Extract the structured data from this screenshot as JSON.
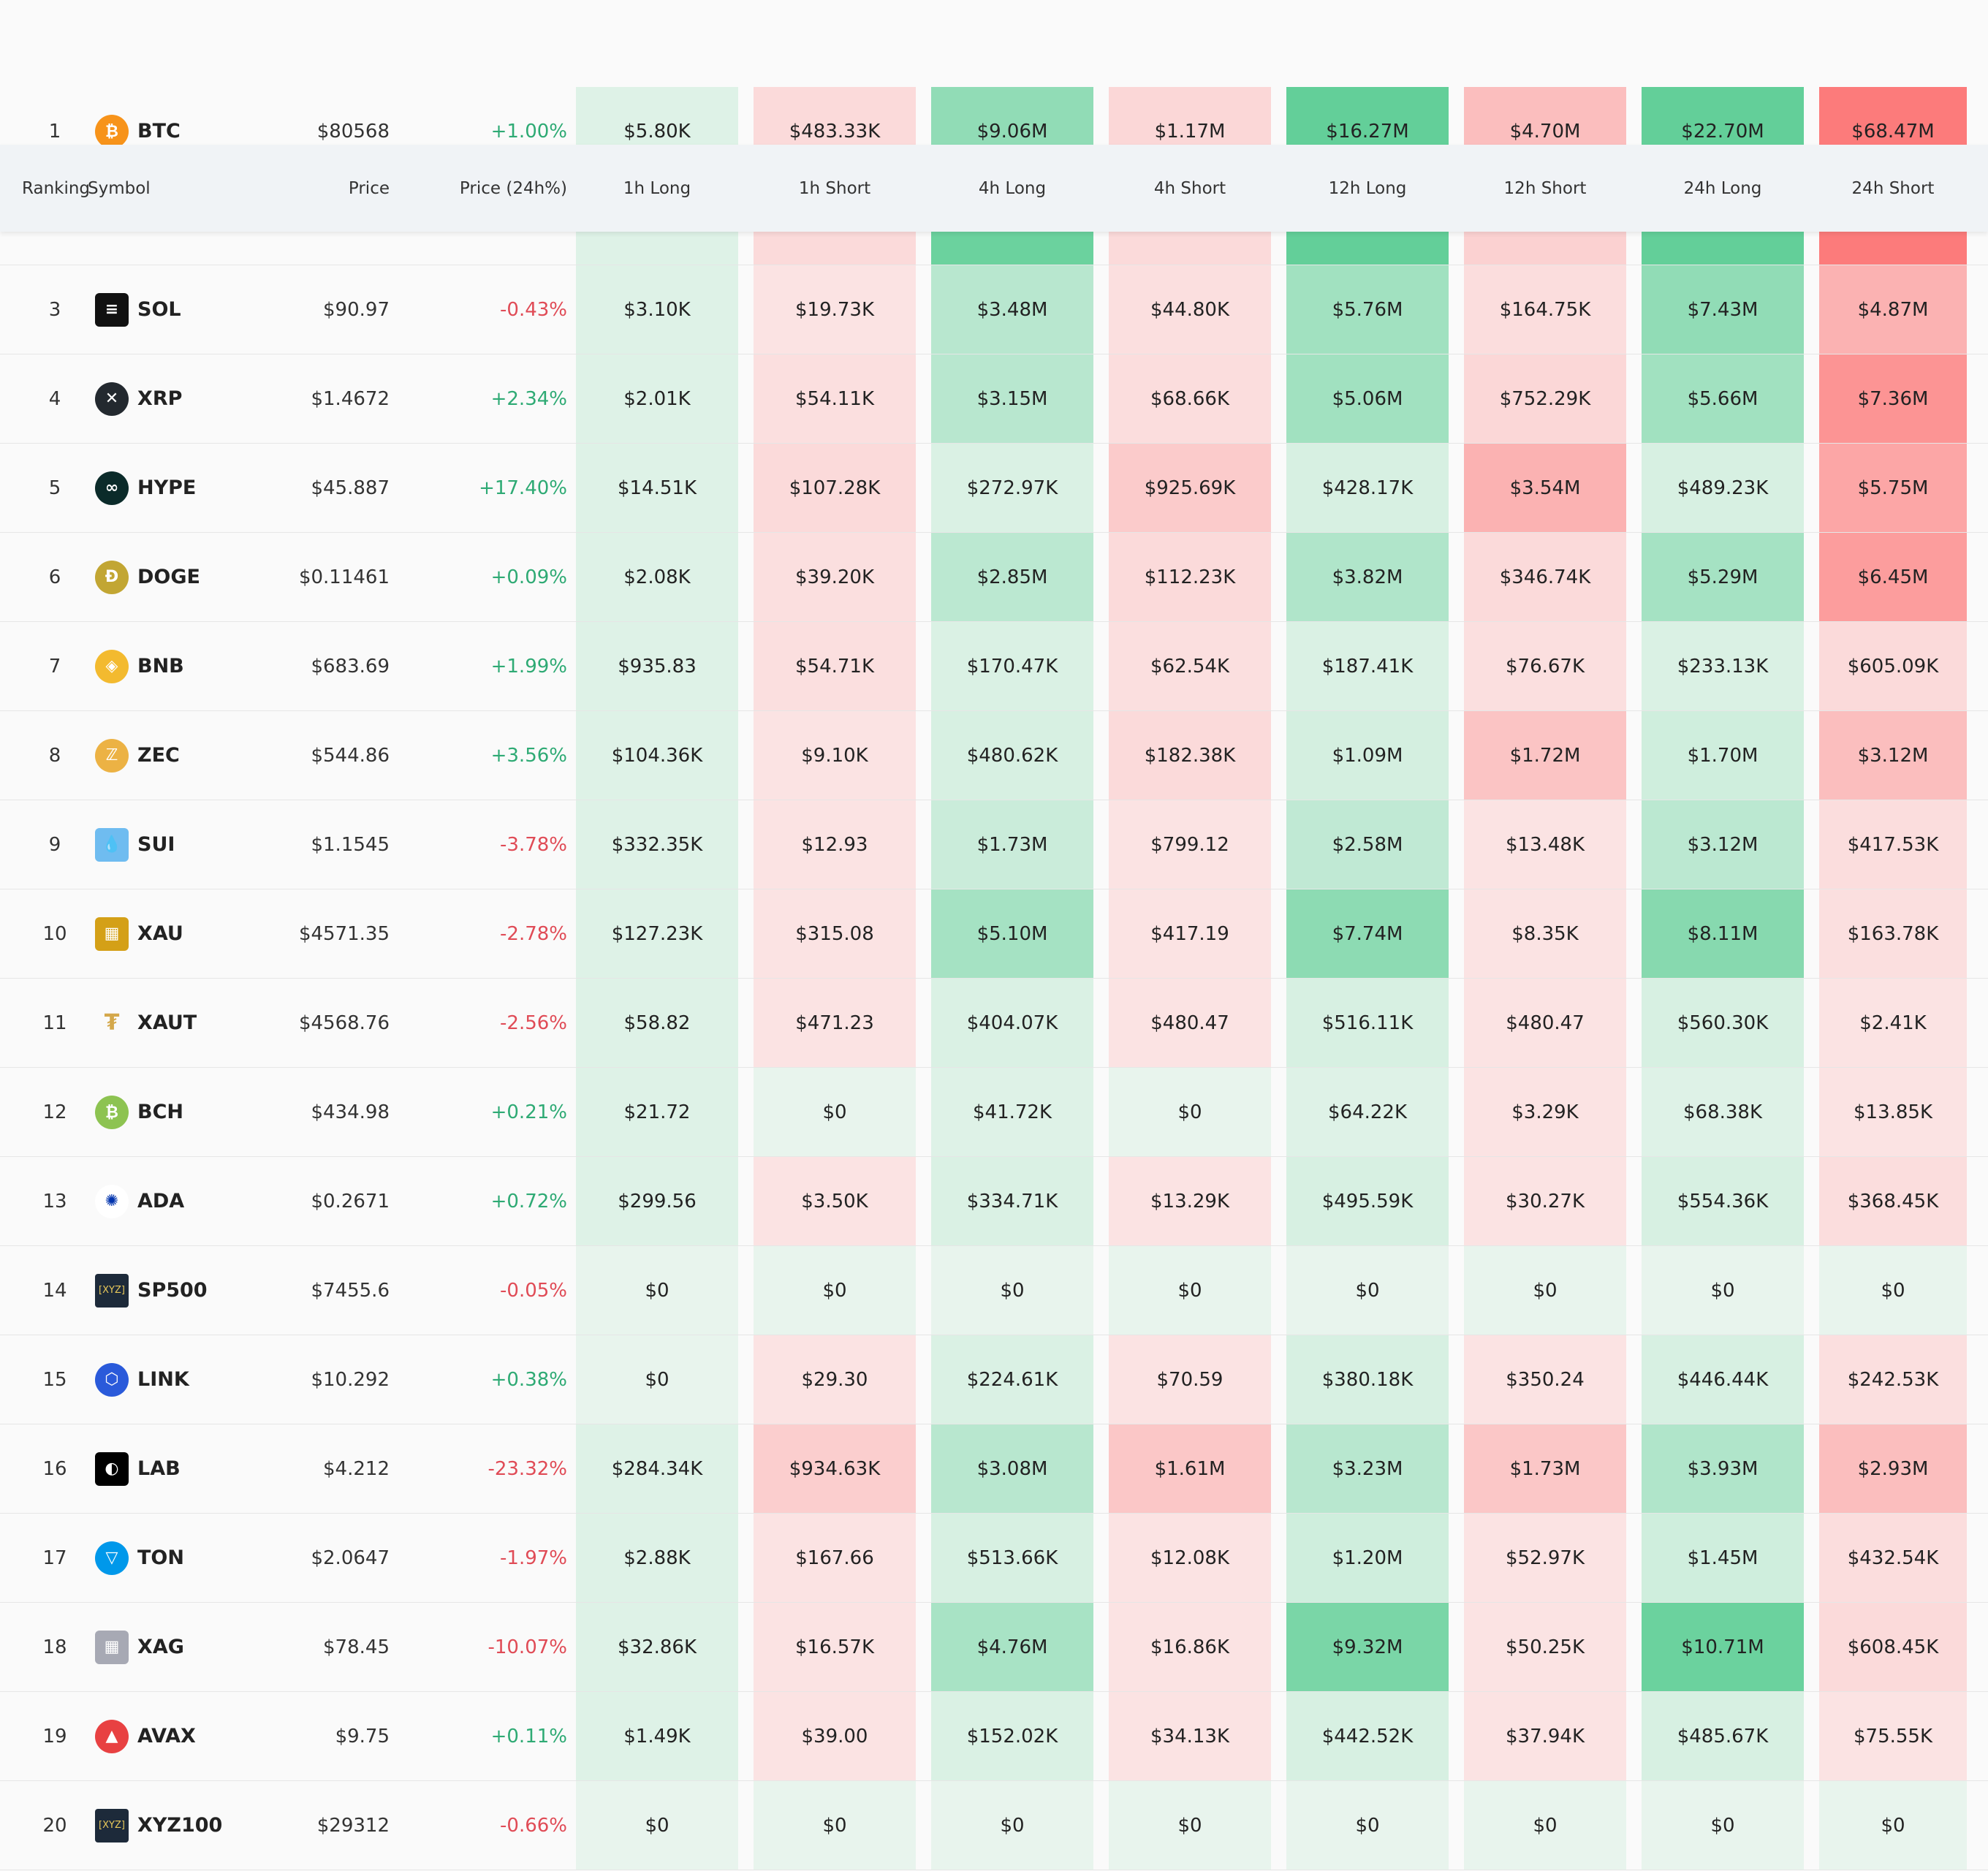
{
  "columns": {
    "ranking": "Ranking",
    "symbol": "Symbol",
    "price": "Price",
    "price_change": "Price (24h%)",
    "h1_long": "1h Long",
    "h1_short": "1h Short",
    "h4_long": "4h Long",
    "h4_short": "4h Short",
    "h12_long": "12h Long",
    "h12_short": "12h Short",
    "h24_long": "24h Long",
    "h24_short": "24h Short"
  },
  "colors": {
    "positive": "#2eaa74",
    "negative": "#e04b56",
    "long_base": "#e6f4ec",
    "short_base": "#fbe9e9"
  },
  "rows": [
    {
      "rank": "1",
      "symbol": "BTC",
      "icon": "bitcoin-icon",
      "icon_color": "#f7931a",
      "glyph": "₿",
      "price": "$80568",
      "change": "+1.00%",
      "dir": "pos",
      "values": [
        "$5.80K",
        "$483.33K",
        "$9.06M",
        "$1.17M",
        "$16.27M",
        "$4.70M",
        "$22.70M",
        "$68.47M"
      ],
      "levels": [
        0.05,
        0.12,
        0.55,
        0.15,
        0.85,
        0.35,
        0.85,
        0.9
      ]
    },
    {
      "rank": "",
      "symbol": "",
      "icon": "",
      "icon_color": "",
      "glyph": "",
      "price": "",
      "change": "",
      "dir": "pos",
      "values": [
        "",
        "",
        "",
        "",
        "",
        "",
        "",
        ""
      ],
      "levels": [
        0.05,
        0.12,
        0.8,
        0.12,
        0.85,
        0.2,
        0.85,
        0.9
      ]
    },
    {
      "rank": "3",
      "symbol": "SOL",
      "icon": "solana-icon",
      "icon_color": "#111111",
      "glyph": "≡",
      "price": "$90.97",
      "change": "-0.43%",
      "dir": "neg",
      "values": [
        "$3.10K",
        "$19.73K",
        "$3.48M",
        "$44.80K",
        "$5.76M",
        "$164.75K",
        "$7.43M",
        "$4.87M"
      ],
      "levels": [
        0.05,
        0.05,
        0.3,
        0.08,
        0.45,
        0.1,
        0.55,
        0.45
      ]
    },
    {
      "rank": "4",
      "symbol": "XRP",
      "icon": "xrp-icon",
      "icon_color": "#23292f",
      "glyph": "✕",
      "price": "$1.4672",
      "change": "+2.34%",
      "dir": "pos",
      "values": [
        "$2.01K",
        "$54.11K",
        "$3.15M",
        "$68.66K",
        "$5.06M",
        "$752.29K",
        "$5.66M",
        "$7.36M"
      ],
      "levels": [
        0.05,
        0.08,
        0.3,
        0.1,
        0.45,
        0.15,
        0.45,
        0.7
      ]
    },
    {
      "rank": "5",
      "symbol": "HYPE",
      "icon": "hyperliquid-icon",
      "icon_color": "#0b2b2a",
      "glyph": "∞",
      "price": "$45.887",
      "change": "+17.40%",
      "dir": "pos",
      "values": [
        "$14.51K",
        "$107.28K",
        "$272.97K",
        "$925.69K",
        "$428.17K",
        "$3.54M",
        "$489.23K",
        "$5.75M"
      ],
      "levels": [
        0.05,
        0.12,
        0.08,
        0.25,
        0.1,
        0.45,
        0.1,
        0.55
      ]
    },
    {
      "rank": "6",
      "symbol": "DOGE",
      "icon": "dogecoin-icon",
      "icon_color": "#c2a633",
      "glyph": "Ð",
      "price": "$0.11461",
      "change": "+0.09%",
      "dir": "pos",
      "values": [
        "$2.08K",
        "$39.20K",
        "$2.85M",
        "$112.23K",
        "$3.82M",
        "$346.74K",
        "$5.29M",
        "$6.45M"
      ],
      "levels": [
        0.05,
        0.08,
        0.28,
        0.12,
        0.35,
        0.12,
        0.42,
        0.62
      ]
    },
    {
      "rank": "7",
      "symbol": "BNB",
      "icon": "bnb-icon",
      "icon_color": "#f3ba2f",
      "glyph": "◈",
      "price": "$683.69",
      "change": "+1.99%",
      "dir": "pos",
      "values": [
        "$935.83",
        "$54.71K",
        "$170.47K",
        "$62.54K",
        "$187.41K",
        "$76.67K",
        "$233.13K",
        "$605.09K"
      ],
      "levels": [
        0.05,
        0.08,
        0.08,
        0.08,
        0.08,
        0.08,
        0.08,
        0.12
      ]
    },
    {
      "rank": "8",
      "symbol": "ZEC",
      "icon": "zcash-icon",
      "icon_color": "#ecb244",
      "glyph": "ℤ",
      "price": "$544.86",
      "change": "+3.56%",
      "dir": "pos",
      "values": [
        "$104.36K",
        "$9.10K",
        "$480.62K",
        "$182.38K",
        "$1.09M",
        "$1.72M",
        "$1.70M",
        "$3.12M"
      ],
      "levels": [
        0.05,
        0.05,
        0.1,
        0.12,
        0.12,
        0.3,
        0.15,
        0.35
      ]
    },
    {
      "rank": "9",
      "symbol": "SUI",
      "icon": "sui-icon",
      "icon_color": "#6fbcf0",
      "glyph": "💧",
      "price": "$1.1545",
      "change": "-3.78%",
      "dir": "neg",
      "values": [
        "$332.35K",
        "$12.93",
        "$1.73M",
        "$799.12",
        "$2.58M",
        "$13.48K",
        "$3.12M",
        "$417.53K"
      ],
      "levels": [
        0.05,
        0.05,
        0.18,
        0.05,
        0.25,
        0.05,
        0.28,
        0.1
      ]
    },
    {
      "rank": "10",
      "symbol": "XAU",
      "icon": "gold-icon",
      "icon_color": "#d4a017",
      "glyph": "▦",
      "price": "$4571.35",
      "change": "-2.78%",
      "dir": "neg",
      "values": [
        "$127.23K",
        "$315.08",
        "$5.10M",
        "$417.19",
        "$7.74M",
        "$8.35K",
        "$8.11M",
        "$163.78K"
      ],
      "levels": [
        0.05,
        0.05,
        0.42,
        0.05,
        0.58,
        0.05,
        0.62,
        0.08
      ]
    },
    {
      "rank": "11",
      "symbol": "XAUT",
      "icon": "tether-gold-icon",
      "icon_color": "#e5c07b",
      "glyph": "₮",
      "price": "$4568.76",
      "change": "-2.56%",
      "dir": "neg",
      "values": [
        "$58.82",
        "$471.23",
        "$404.07K",
        "$480.47",
        "$516.11K",
        "$480.47",
        "$560.30K",
        "$2.41K"
      ],
      "levels": [
        0.05,
        0.05,
        0.08,
        0.05,
        0.1,
        0.05,
        0.1,
        0.05
      ]
    },
    {
      "rank": "12",
      "symbol": "BCH",
      "icon": "bitcoin-cash-icon",
      "icon_color": "#8dc351",
      "glyph": "₿",
      "price": "$434.98",
      "change": "+0.21%",
      "dir": "pos",
      "values": [
        "$21.72",
        "$0",
        "$41.72K",
        "$0",
        "$64.22K",
        "$3.29K",
        "$68.38K",
        "$13.85K"
      ],
      "levels": [
        0.05,
        0,
        0.05,
        0,
        0.05,
        0.05,
        0.05,
        0.05
      ]
    },
    {
      "rank": "13",
      "symbol": "ADA",
      "icon": "cardano-icon",
      "icon_color": "#ffffff",
      "glyph": "✺",
      "price": "$0.2671",
      "change": "+0.72%",
      "dir": "pos",
      "values": [
        "$299.56",
        "$3.50K",
        "$334.71K",
        "$13.29K",
        "$495.59K",
        "$30.27K",
        "$554.36K",
        "$368.45K"
      ],
      "levels": [
        0.05,
        0.05,
        0.08,
        0.05,
        0.1,
        0.05,
        0.1,
        0.1
      ]
    },
    {
      "rank": "14",
      "symbol": "SP500",
      "icon": "xyz-icon",
      "icon_color": "#1d2a3a",
      "glyph": "[XYZ]",
      "price": "$7455.6",
      "change": "-0.05%",
      "dir": "neg",
      "values": [
        "$0",
        "$0",
        "$0",
        "$0",
        "$0",
        "$0",
        "$0",
        "$0"
      ],
      "levels": [
        0,
        0,
        0,
        0,
        0,
        0,
        0,
        0
      ]
    },
    {
      "rank": "15",
      "symbol": "LINK",
      "icon": "chainlink-icon",
      "icon_color": "#2a5ada",
      "glyph": "⬡",
      "price": "$10.292",
      "change": "+0.38%",
      "dir": "pos",
      "values": [
        "$0",
        "$29.30",
        "$224.61K",
        "$70.59",
        "$380.18K",
        "$350.24",
        "$446.44K",
        "$242.53K"
      ],
      "levels": [
        0,
        0.05,
        0.08,
        0.05,
        0.1,
        0.05,
        0.1,
        0.08
      ]
    },
    {
      "rank": "16",
      "symbol": "LAB",
      "icon": "lab-icon",
      "icon_color": "#000000",
      "glyph": "◐",
      "price": "$4.212",
      "change": "-23.32%",
      "dir": "neg",
      "values": [
        "$284.34K",
        "$934.63K",
        "$3.08M",
        "$1.61M",
        "$3.23M",
        "$1.73M",
        "$3.93M",
        "$2.93M"
      ],
      "levels": [
        0.05,
        0.22,
        0.3,
        0.28,
        0.3,
        0.28,
        0.35,
        0.35
      ]
    },
    {
      "rank": "17",
      "symbol": "TON",
      "icon": "toncoin-icon",
      "icon_color": "#0098ea",
      "glyph": "▽",
      "price": "$2.0647",
      "change": "-1.97%",
      "dir": "neg",
      "values": [
        "$2.88K",
        "$167.66",
        "$513.66K",
        "$12.08K",
        "$1.20M",
        "$52.97K",
        "$1.45M",
        "$432.54K"
      ],
      "levels": [
        0.05,
        0.05,
        0.1,
        0.05,
        0.15,
        0.05,
        0.15,
        0.1
      ]
    },
    {
      "rank": "18",
      "symbol": "XAG",
      "icon": "silver-icon",
      "icon_color": "#a7a9b4",
      "glyph": "▦",
      "price": "$78.45",
      "change": "-10.07%",
      "dir": "neg",
      "values": [
        "$32.86K",
        "$16.57K",
        "$4.76M",
        "$16.86K",
        "$9.32M",
        "$50.25K",
        "$10.71M",
        "$608.45K"
      ],
      "levels": [
        0.05,
        0.05,
        0.4,
        0.05,
        0.7,
        0.05,
        0.8,
        0.12
      ]
    },
    {
      "rank": "19",
      "symbol": "AVAX",
      "icon": "avalanche-icon",
      "icon_color": "#e84142",
      "glyph": "▲",
      "price": "$9.75",
      "change": "+0.11%",
      "dir": "pos",
      "values": [
        "$1.49K",
        "$39.00",
        "$152.02K",
        "$34.13K",
        "$442.52K",
        "$37.94K",
        "$485.67K",
        "$75.55K"
      ],
      "levels": [
        0.05,
        0.05,
        0.08,
        0.05,
        0.1,
        0.05,
        0.1,
        0.05
      ]
    },
    {
      "rank": "20",
      "symbol": "XYZ100",
      "icon": "xyz-icon",
      "icon_color": "#1d2a3a",
      "glyph": "[XYZ]",
      "price": "$29312",
      "change": "-0.66%",
      "dir": "neg",
      "values": [
        "$0",
        "$0",
        "$0",
        "$0",
        "$0",
        "$0",
        "$0",
        "$0"
      ],
      "levels": [
        0,
        0,
        0,
        0,
        0,
        0,
        0,
        0
      ]
    }
  ]
}
